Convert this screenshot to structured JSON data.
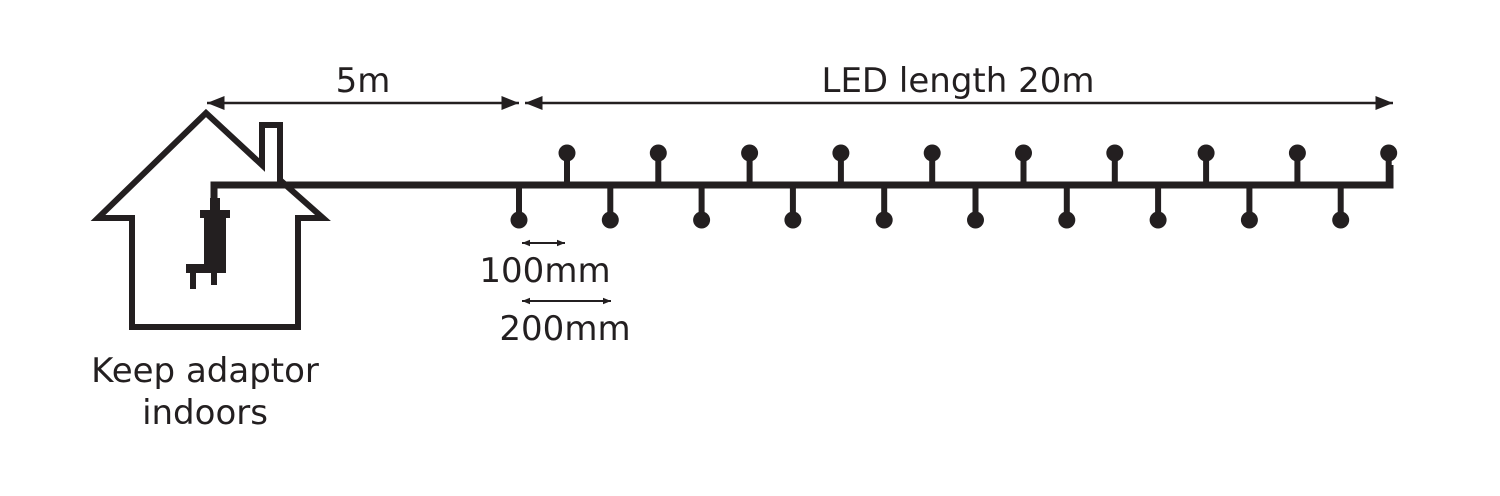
{
  "labels": {
    "cable_length": "5m",
    "led_length": "LED length 20m",
    "spacing_small": "100mm",
    "spacing_large": "200mm",
    "caption_line1": "Keep adaptor",
    "caption_line2": "indoors"
  },
  "led_count_up": 10,
  "led_count_down": 10,
  "colors": {
    "ink": "#231f20",
    "background": "#ffffff"
  }
}
